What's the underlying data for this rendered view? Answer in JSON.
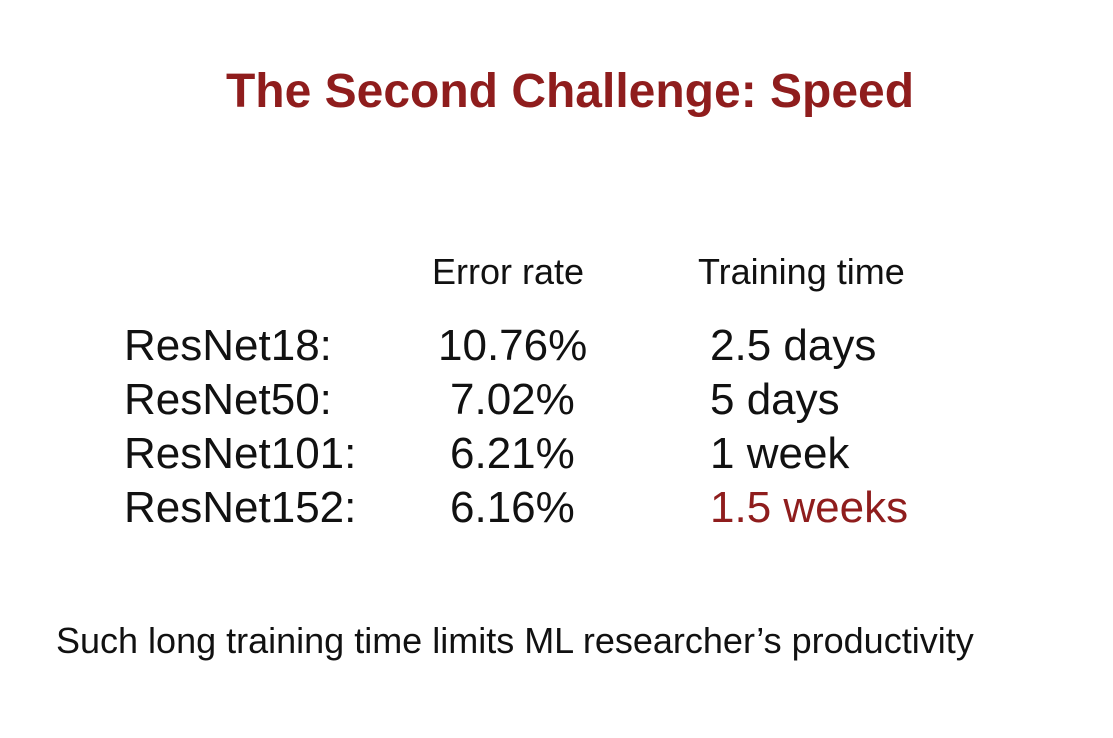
{
  "slide": {
    "title": "The Second Challenge: Speed",
    "colors": {
      "title": "#8f1d1d",
      "text": "#111111",
      "highlight": "#8f1d1d",
      "background": "#ffffff"
    }
  },
  "table": {
    "headers": {
      "error_rate": "Error rate",
      "training_time": "Training time"
    },
    "rows": [
      {
        "model": "ResNet18:",
        "error_rate": "10.76%",
        "training_time": "2.5 days"
      },
      {
        "model": "ResNet50:",
        "error_rate": "7.02%",
        "training_time": "5 days"
      },
      {
        "model": "ResNet101:",
        "error_rate": "6.21%",
        "training_time": "1 week"
      },
      {
        "model": "ResNet152:",
        "error_rate": "6.16%",
        "training_time": "1.5 weeks",
        "highlighted": true
      }
    ]
  },
  "footer": {
    "note": "Such long training time limits ML researcher’s productivity"
  }
}
